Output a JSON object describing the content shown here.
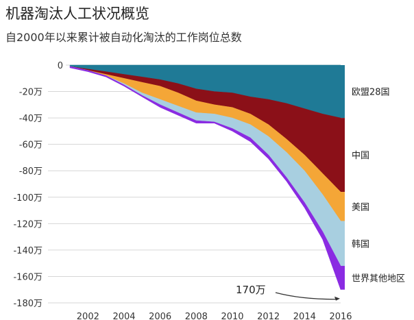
{
  "title": "机器淘汰人工状况概览",
  "subtitle": "自2000年以来累计被自动化淘汰的工作岗位总数",
  "chart_data": {
    "type": "area",
    "stacked": true,
    "x": [
      2001,
      2002,
      2003,
      2004,
      2005,
      2006,
      2007,
      2008,
      2009,
      2010,
      2011,
      2012,
      2013,
      2014,
      2015,
      2016
    ],
    "x_ticks": [
      "2002",
      "2004",
      "2006",
      "2008",
      "2010",
      "2012",
      "2014",
      "2016"
    ],
    "y_ticks": [
      "0",
      "-20万",
      "-40万",
      "-60万",
      "-80万",
      "-100万",
      "-120万",
      "-140万",
      "-160万",
      "-180万"
    ],
    "ylim": [
      -180,
      0
    ],
    "grid": true,
    "legend_position": "right",
    "series": [
      {
        "name": "欧盟28国",
        "color": "#1f7a96",
        "values": [
          -1,
          -3,
          -5,
          -7,
          -9,
          -11,
          -14,
          -18,
          -20,
          -21,
          -24,
          -26,
          -29,
          -33,
          -37,
          -40
        ]
      },
      {
        "name": "中国",
        "color": "#8b1018",
        "values": [
          0,
          -1,
          -2,
          -3,
          -4,
          -5,
          -7,
          -9,
          -10,
          -11,
          -13,
          -19,
          -27,
          -35,
          -45,
          -56
        ]
      },
      {
        "name": "美国",
        "color": "#f4a637",
        "values": [
          0,
          0,
          -1,
          -4,
          -8,
          -10,
          -10,
          -9,
          -7,
          -8,
          -8,
          -9,
          -10,
          -12,
          -16,
          -22
        ]
      },
      {
        "name": "韩国",
        "color": "#a8cfe0",
        "values": [
          0,
          0,
          0,
          -1,
          -2,
          -4,
          -5,
          -6,
          -6,
          -8,
          -10,
          -14,
          -19,
          -24,
          -28,
          -34
        ]
      },
      {
        "name": "世界其他地区",
        "color": "#8a2be2",
        "values": [
          -1,
          -1,
          -1,
          -1,
          -1,
          -2,
          -2,
          -2,
          -1,
          -2,
          -3,
          -3,
          -3,
          -4,
          -6,
          -18
        ]
      }
    ],
    "annotation": {
      "label": "170万",
      "x": 2016,
      "y": -170
    }
  }
}
